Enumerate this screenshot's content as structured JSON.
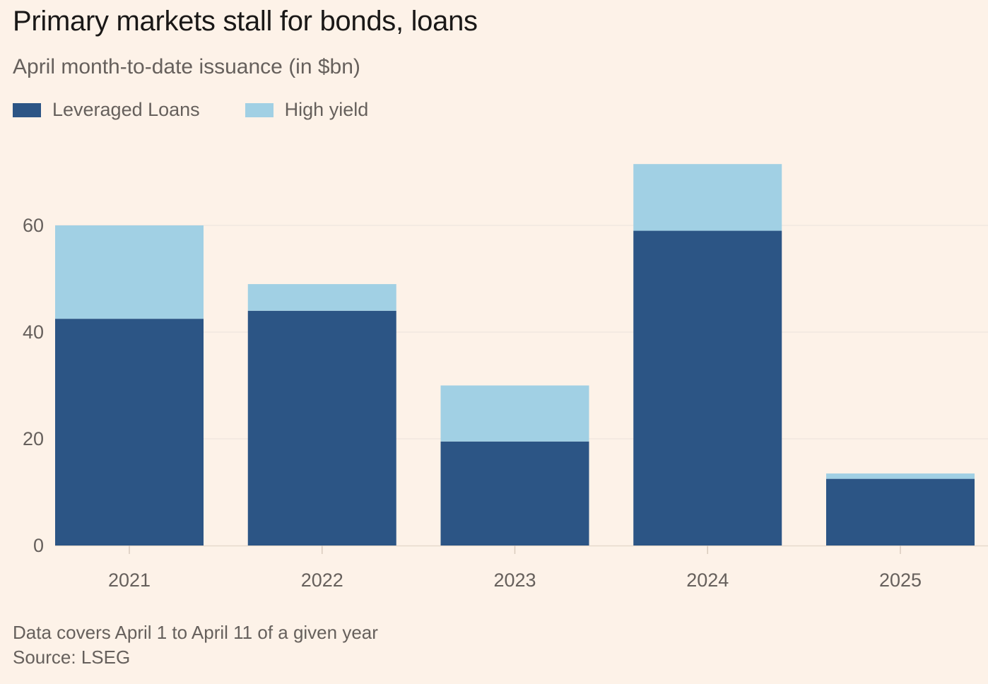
{
  "title": "Primary markets stall for bonds, loans",
  "subtitle": "April month-to-date issuance (in $bn)",
  "footer": {
    "note": "Data covers April 1 to April 11 of a given year",
    "source": "Source: LSEG"
  },
  "colors": {
    "background": "#fdf2e8",
    "leveraged_loans": "#2c5585",
    "high_yield": "#a1d0e4",
    "gridline": "#ebe3db",
    "text_muted": "#66605c"
  },
  "chart_data": {
    "type": "bar",
    "stacked": true,
    "categories": [
      "2021",
      "2022",
      "2023",
      "2024",
      "2025"
    ],
    "series": [
      {
        "name": "Leveraged Loans",
        "values": [
          42.5,
          44.0,
          19.5,
          59.0,
          12.5
        ]
      },
      {
        "name": "High yield",
        "values": [
          17.5,
          5.0,
          10.5,
          12.5,
          1.0
        ]
      }
    ],
    "ylim": [
      0,
      72
    ],
    "yticks": [
      0,
      20,
      40,
      60
    ],
    "grid": true,
    "legend": "top-left"
  }
}
